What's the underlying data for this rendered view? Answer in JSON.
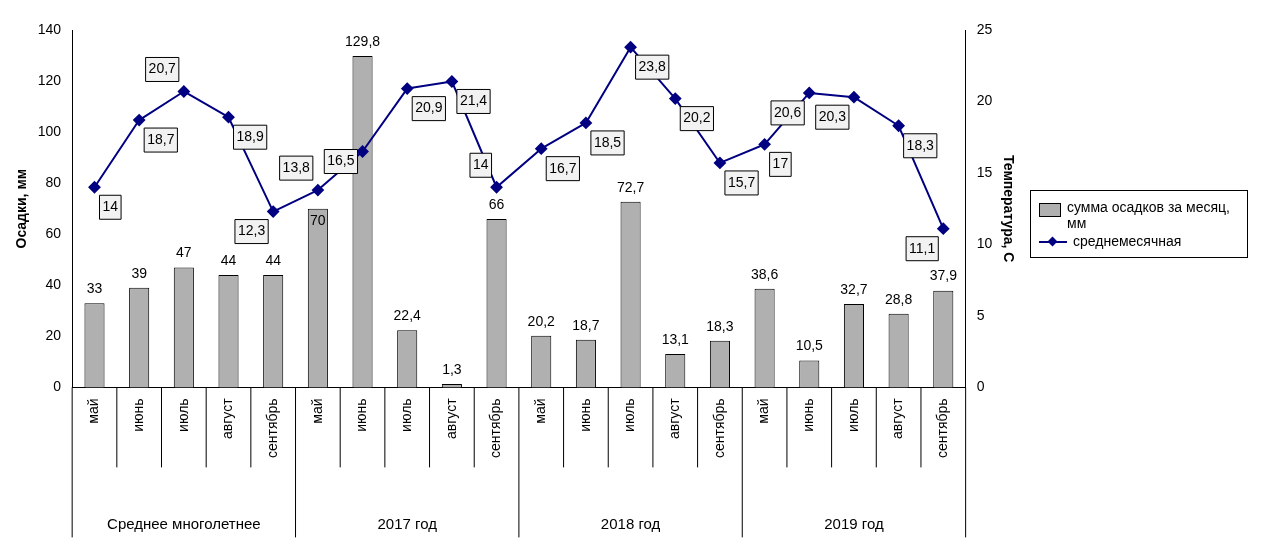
{
  "chart_data": {
    "type": "bar",
    "ylabel": "Осадки, мм",
    "y2label": "Температура, С",
    "categories": [
      "май",
      "июнь",
      "июль",
      "август",
      "сентябрь",
      "май",
      "июнь",
      "июль",
      "август",
      "сентябрь",
      "май",
      "июнь",
      "июль",
      "август",
      "сентябрь",
      "май",
      "июнь",
      "июль",
      "август",
      "сентябрь"
    ],
    "annotations": [
      "Среднее многолетнее",
      "2017 год",
      "2018 год",
      "2019 год"
    ],
    "series": [
      {
        "name": "сумма осадков за месяц, мм",
        "color": "#b0b0b0",
        "values": [
          33,
          39,
          47,
          44,
          44,
          70,
          129.8,
          22.4,
          1.3,
          66,
          20.2,
          18.7,
          72.7,
          13.1,
          18.3,
          38.6,
          10.5,
          32.7,
          28.8,
          37.9
        ],
        "value_labels": [
          "33",
          "39",
          "47",
          "44",
          "44",
          "70",
          "129,8",
          "22,4",
          "1,3",
          "66",
          "20,2",
          "18,7",
          "72,7",
          "13,1",
          "18,3",
          "38,6",
          "10,5",
          "32,7",
          "28,8",
          "37,9"
        ]
      },
      {
        "name": "среднемесячная",
        "type": "line",
        "axis": "y2",
        "color": "#000080",
        "marker": "diamond",
        "values": [
          14,
          18.7,
          20.7,
          18.9,
          12.3,
          13.8,
          16.5,
          20.9,
          21.4,
          14,
          16.7,
          18.5,
          23.8,
          20.2,
          15.7,
          17,
          20.6,
          20.3,
          18.3,
          11.1
        ],
        "value_labels": [
          "14",
          "18,7",
          "20,7",
          "18,9",
          "12,3",
          "13,8",
          "16,5",
          "20,9",
          "21,4",
          "14",
          "16,7",
          "18,5",
          "23,8",
          "20,2",
          "15,7",
          "17",
          "20,6",
          "20,3",
          "18,3",
          "11,1"
        ]
      }
    ],
    "ylim": [
      0,
      140
    ],
    "yticks": [
      0,
      20,
      40,
      60,
      80,
      100,
      120,
      140
    ],
    "y2lim": [
      0,
      25
    ],
    "y2ticks": [
      0,
      5,
      10,
      15,
      20,
      25
    ],
    "grid": false,
    "legend": "right"
  }
}
